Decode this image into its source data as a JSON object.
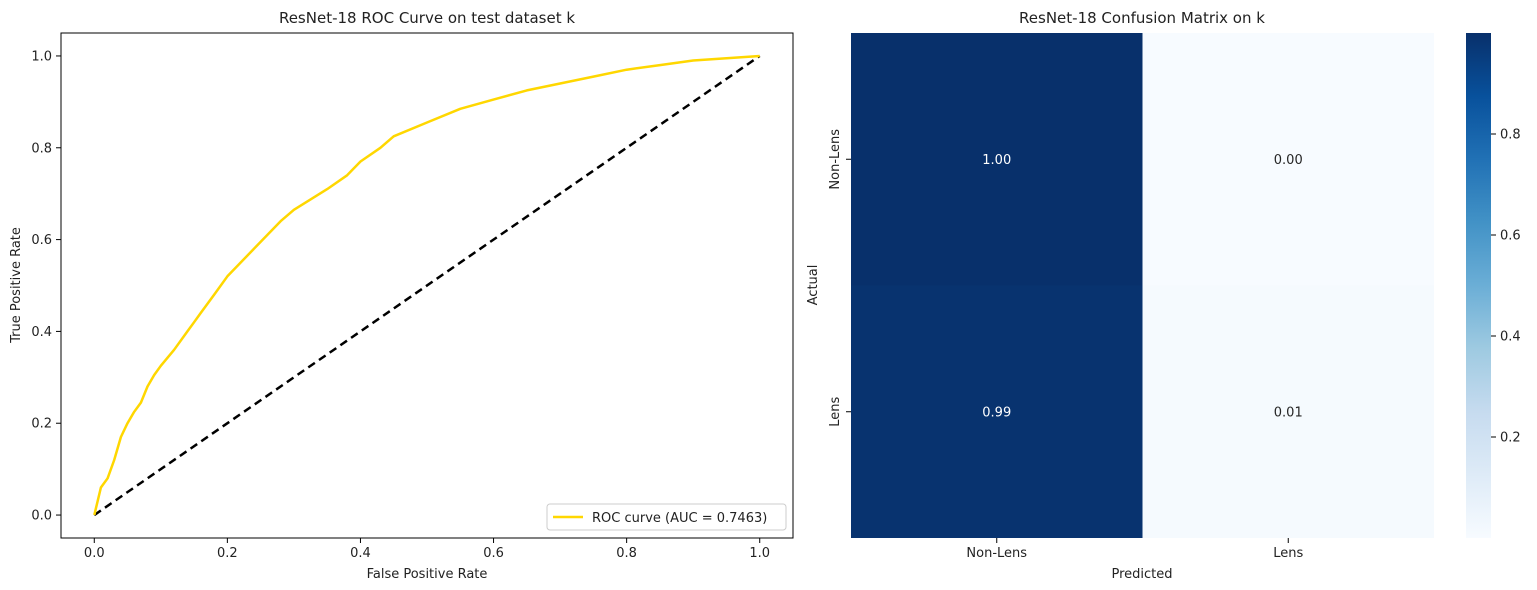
{
  "chart_data": [
    {
      "type": "line",
      "title": "ResNet-18 ROC Curve on test dataset k",
      "xlabel": "False Positive Rate",
      "ylabel": "True Positive Rate",
      "xlim": [
        -0.05,
        1.05
      ],
      "ylim": [
        -0.05,
        1.05
      ],
      "xticks": [
        "0.0",
        "0.2",
        "0.4",
        "0.6",
        "0.8",
        "1.0"
      ],
      "yticks": [
        "0.0",
        "0.2",
        "0.4",
        "0.6",
        "0.8",
        "1.0"
      ],
      "legend_position": "lower-right",
      "series": [
        {
          "name": "ROC curve (AUC = 0.7463)",
          "color": "#FFD700",
          "x": [
            0,
            0.005,
            0.01,
            0.02,
            0.03,
            0.04,
            0.05,
            0.06,
            0.07,
            0.08,
            0.09,
            0.1,
            0.12,
            0.14,
            0.15,
            0.16,
            0.18,
            0.2,
            0.22,
            0.25,
            0.28,
            0.3,
            0.35,
            0.38,
            0.4,
            0.43,
            0.45,
            0.5,
            0.55,
            0.6,
            0.65,
            0.7,
            0.75,
            0.8,
            0.85,
            0.9,
            0.95,
            1.0
          ],
          "y": [
            0.0,
            0.03,
            0.06,
            0.08,
            0.12,
            0.17,
            0.2,
            0.225,
            0.245,
            0.28,
            0.305,
            0.325,
            0.36,
            0.4,
            0.42,
            0.44,
            0.48,
            0.52,
            0.55,
            0.595,
            0.64,
            0.665,
            0.71,
            0.74,
            0.77,
            0.8,
            0.825,
            0.855,
            0.885,
            0.905,
            0.925,
            0.94,
            0.955,
            0.97,
            0.98,
            0.99,
            0.995,
            1.0
          ]
        },
        {
          "name": "",
          "color": "#000000",
          "style": "dashed",
          "x": [
            0,
            1
          ],
          "y": [
            0,
            1
          ]
        }
      ]
    },
    {
      "type": "heatmap",
      "title": "ResNet-18 Confusion Matrix on k",
      "xlabel": "Predicted",
      "ylabel": "Actual",
      "x_categories": [
        "Non-Lens",
        "Lens"
      ],
      "y_categories": [
        "Non-Lens",
        "Lens"
      ],
      "values": [
        [
          1.0,
          0.0
        ],
        [
          0.99,
          0.01
        ]
      ],
      "annotations": [
        [
          "1.00",
          "0.00"
        ],
        [
          "0.99",
          "0.01"
        ]
      ],
      "colormap": "Blues",
      "colorbar_ticks": [
        "0.2",
        "0.4",
        "0.6",
        "0.8"
      ],
      "colorbar_range": [
        0.0,
        1.0
      ]
    }
  ]
}
